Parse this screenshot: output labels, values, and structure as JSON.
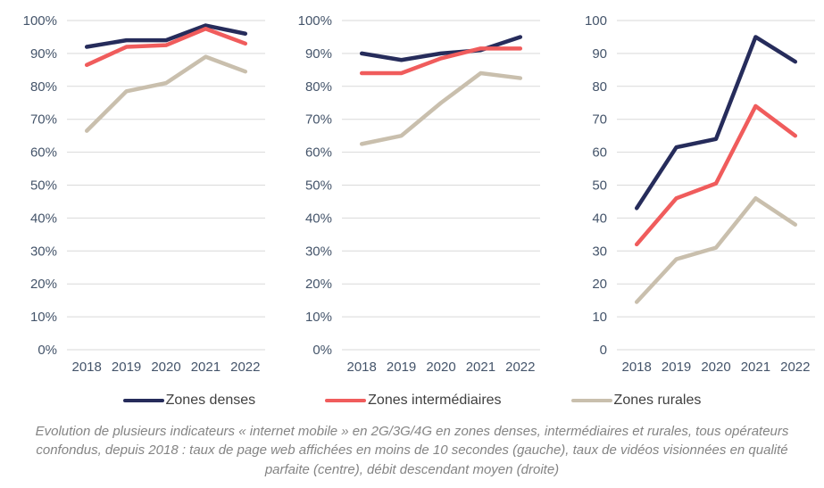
{
  "style": {
    "axis_label_color": "#44546a",
    "gridline_color": "#d9d9d9",
    "legend_text_color": "#404040",
    "caption_color": "#848484"
  },
  "legend": {
    "items": [
      {
        "label": "Zones denses",
        "color": "#262c5b"
      },
      {
        "label": "Zones intermédiaires",
        "color": "#f05c5c"
      },
      {
        "label": "Zones rurales",
        "color": "#c9bfad"
      }
    ]
  },
  "caption": "Evolution de plusieurs indicateurs « internet mobile » en 2G/3G/4G en zones denses, intermédiaires et rurales, tous opérateurs confondus, depuis 2018 : taux de page web affichées en moins de 10 secondes (gauche), taux de vidéos visionnées en qualité parfaite (centre), débit descendant moyen (droite)",
  "chart_data": [
    {
      "type": "line",
      "x": [
        "2018",
        "2019",
        "2020",
        "2021",
        "2022"
      ],
      "ylim": [
        0,
        100
      ],
      "ytick_step": 10,
      "ytick_suffix": "%",
      "grid": true,
      "legend_position": "bottom",
      "series": [
        {
          "name": "Zones denses",
          "color": "#262c5b",
          "values": [
            92,
            94,
            94,
            98.5,
            96
          ]
        },
        {
          "name": "Zones intermédiaires",
          "color": "#f05c5c",
          "values": [
            86.5,
            92,
            92.5,
            97.5,
            93
          ]
        },
        {
          "name": "Zones rurales",
          "color": "#c9bfad",
          "values": [
            66.5,
            78.5,
            81,
            89,
            84.5
          ]
        }
      ]
    },
    {
      "type": "line",
      "x": [
        "2018",
        "2019",
        "2020",
        "2021",
        "2022"
      ],
      "ylim": [
        0,
        100
      ],
      "ytick_step": 10,
      "ytick_suffix": "%",
      "grid": true,
      "legend_position": "bottom",
      "series": [
        {
          "name": "Zones denses",
          "color": "#262c5b",
          "values": [
            90,
            88,
            90,
            91,
            95
          ]
        },
        {
          "name": "Zones intermédiaires",
          "color": "#f05c5c",
          "values": [
            84,
            84,
            88.5,
            91.5,
            91.5
          ]
        },
        {
          "name": "Zones rurales",
          "color": "#c9bfad",
          "values": [
            62.5,
            65,
            75,
            84,
            82.5
          ]
        }
      ]
    },
    {
      "type": "line",
      "x": [
        "2018",
        "2019",
        "2020",
        "2021",
        "2022"
      ],
      "ylim": [
        0,
        100
      ],
      "ytick_step": 10,
      "ytick_suffix": "",
      "grid": true,
      "legend_position": "bottom",
      "series": [
        {
          "name": "Zones denses",
          "color": "#262c5b",
          "values": [
            43,
            61.5,
            64,
            95,
            87.5
          ]
        },
        {
          "name": "Zones intermédiaires",
          "color": "#f05c5c",
          "values": [
            32,
            46,
            50.5,
            74,
            65
          ]
        },
        {
          "name": "Zones rurales",
          "color": "#c9bfad",
          "values": [
            14.5,
            27.5,
            31,
            46,
            38
          ]
        }
      ]
    }
  ]
}
